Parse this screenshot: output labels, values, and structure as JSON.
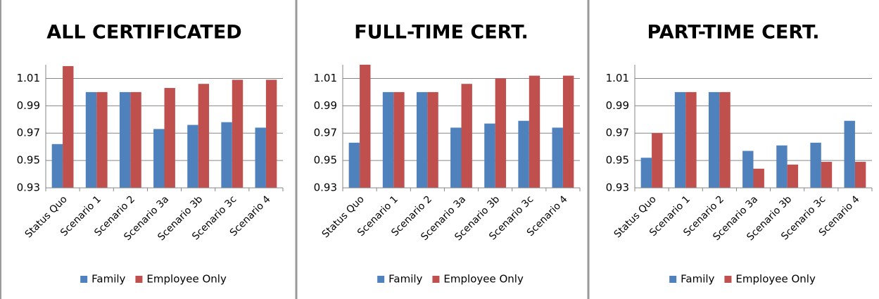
{
  "chart_data": [
    {
      "type": "bar",
      "title": "ALL CERTIFICATED",
      "categories": [
        "Status Quo",
        "Scenario 1",
        "Scenario 2",
        "Scenario 3a",
        "Scenario 3b",
        "Scenario 3c",
        "Scenario 4"
      ],
      "series": [
        {
          "name": "Family",
          "color": "#4f81bd",
          "values": [
            0.962,
            1.0,
            1.0,
            0.973,
            0.976,
            0.978,
            0.974
          ]
        },
        {
          "name": "Employee Only",
          "color": "#c0504d",
          "values": [
            1.019,
            1.0,
            1.0,
            1.003,
            1.006,
            1.009,
            1.009
          ]
        }
      ],
      "ylim": [
        0.93,
        1.02
      ],
      "yticks": [
        0.93,
        0.95,
        0.97,
        0.99,
        1.01
      ],
      "grid": true,
      "legend": "bottom"
    },
    {
      "type": "bar",
      "title": "FULL-TIME CERT.",
      "categories": [
        "Status Quo",
        "Scenario 1",
        "Scenario 2",
        "Scenario 3a",
        "Scenario 3b",
        "Scenario 3c",
        "Scenario 4"
      ],
      "series": [
        {
          "name": "Family",
          "color": "#4f81bd",
          "values": [
            0.963,
            1.0,
            1.0,
            0.974,
            0.977,
            0.979,
            0.974
          ]
        },
        {
          "name": "Employee Only",
          "color": "#c0504d",
          "values": [
            1.02,
            1.0,
            1.0,
            1.006,
            1.01,
            1.012,
            1.012
          ]
        }
      ],
      "ylim": [
        0.93,
        1.02
      ],
      "yticks": [
        0.93,
        0.95,
        0.97,
        0.99,
        1.01
      ],
      "grid": true,
      "legend": "bottom"
    },
    {
      "type": "bar",
      "title": "PART-TIME CERT.",
      "categories": [
        "Status Quo",
        "Scenario 1",
        "Scenario 2",
        "Scenario 3a",
        "Scenario 3b",
        "Scenario 3c",
        "Scenario 4"
      ],
      "series": [
        {
          "name": "Family",
          "color": "#4f81bd",
          "values": [
            0.952,
            1.0,
            1.0,
            0.957,
            0.961,
            0.963,
            0.979
          ]
        },
        {
          "name": "Employee Only",
          "color": "#c0504d",
          "values": [
            0.97,
            1.0,
            1.0,
            0.944,
            0.947,
            0.949,
            0.949
          ]
        }
      ],
      "ylim": [
        0.93,
        1.02
      ],
      "yticks": [
        0.93,
        0.95,
        0.97,
        0.99,
        1.01
      ],
      "grid": true,
      "legend": "bottom"
    }
  ]
}
